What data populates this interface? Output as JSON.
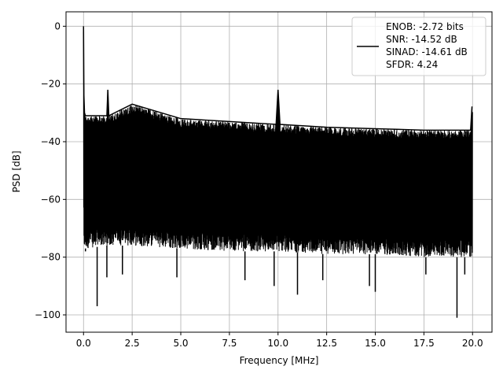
{
  "chart_data": {
    "type": "line",
    "title": "",
    "xlabel": "Frequency [MHz]",
    "ylabel": "PSD [dB]",
    "xlim": [
      -0.9,
      21.0
    ],
    "ylim": [
      -106,
      5
    ],
    "x_ticks": [
      0.0,
      2.5,
      5.0,
      7.5,
      10.0,
      12.5,
      15.0,
      17.5,
      20.0
    ],
    "x_tick_labels": [
      "0.0",
      "2.5",
      "5.0",
      "7.5",
      "10.0",
      "12.5",
      "15.0",
      "17.5",
      "20.0"
    ],
    "y_ticks": [
      0,
      -20,
      -40,
      -60,
      -80,
      -100
    ],
    "y_tick_labels": [
      "0",
      "−20",
      "−40",
      "−60",
      "−80",
      "−100"
    ],
    "grid": true,
    "legend_position": "top-right",
    "legend_lines": [
      "ENOB: -2.72 bits",
      "SNR: -14.52 dB",
      "SINAD: -14.61 dB",
      "SFDR: 4.24"
    ],
    "series": [
      {
        "color": "#000000",
        "x": [
          0.0,
          0.02,
          0.05,
          0.1,
          1.2,
          1.25,
          1.3,
          2.5,
          5.0,
          7.5,
          9.9,
          10.0,
          10.1,
          12.5,
          15.0,
          17.5,
          19.9,
          19.97,
          20.0
        ],
        "upper_envelope": [
          0,
          -24,
          -30,
          -31,
          -31,
          -22,
          -31,
          -27,
          -32,
          -33,
          -34,
          -22,
          -34,
          -35,
          -35.5,
          -36,
          -36,
          -28,
          -28
        ],
        "typical_lower": [
          -63,
          -78,
          -77,
          -77,
          -76,
          -76,
          -76,
          -76,
          -77,
          -78,
          -78,
          -78,
          -78,
          -79,
          -79,
          -80,
          -80,
          -80,
          -80
        ],
        "noise_floor_samples": [
          [
            0.1,
            -78
          ],
          [
            0.7,
            -97
          ],
          [
            1.2,
            -87
          ],
          [
            2.0,
            -86
          ],
          [
            4.8,
            -87
          ],
          [
            8.3,
            -88
          ],
          [
            9.8,
            -90
          ],
          [
            11.0,
            -93
          ],
          [
            12.3,
            -88
          ],
          [
            14.7,
            -90
          ],
          [
            15.0,
            -92
          ],
          [
            17.6,
            -86
          ],
          [
            19.2,
            -101
          ],
          [
            19.6,
            -86
          ]
        ]
      }
    ]
  }
}
